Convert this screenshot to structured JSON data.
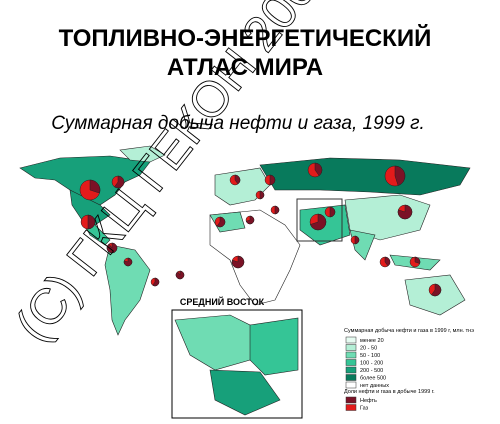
{
  "header": {
    "title_line1": "ТОПЛИВНО-ЭНЕРГЕТИЧЕСКИЙ",
    "title_line2": "АТЛАС МИРА",
    "subtitle": "Суммарная добыча нефти и газа, 1999 г."
  },
  "watermark": "(С) ГКЦ ГЕКОН 2000",
  "inset": {
    "title": "СРЕДНИЙ ВОСТОК"
  },
  "legend": {
    "title": "Суммарная добыча нефти и газа в 1999 г, млн. тнэ",
    "items": [
      {
        "label": "менее 20",
        "color": "#e6fbf1"
      },
      {
        "label": "20 - 50",
        "color": "#b4efd6"
      },
      {
        "label": "50 - 100",
        "color": "#6fdcb3"
      },
      {
        "label": "100 - 200",
        "color": "#35c596"
      },
      {
        "label": "200 - 500",
        "color": "#17a07a"
      },
      {
        "label": "более 500",
        "color": "#087a5c"
      },
      {
        "label": "нет данных",
        "color": "#ffffff"
      }
    ],
    "share_title": "Доли нефти и газа в добыче 1999 г.",
    "share_items": [
      {
        "label": "Нефть",
        "color": "#7b1226"
      },
      {
        "label": "Газ",
        "color": "#e31b1b"
      }
    ]
  }
}
